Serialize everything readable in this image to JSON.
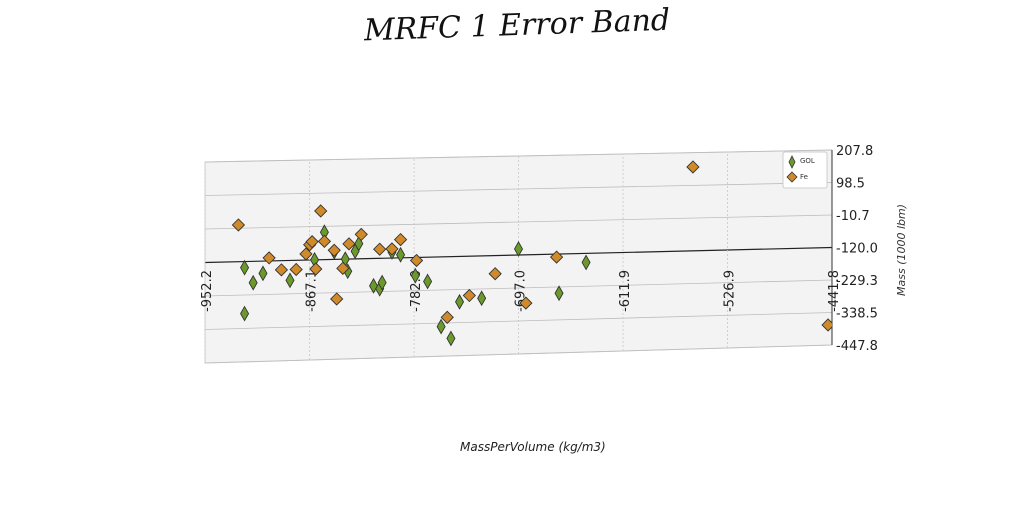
{
  "chart_data": {
    "type": "scatter",
    "title": "MRFC 1 Error Band",
    "xlabel": "MassPerVolume (kg/m3)",
    "ylabel": "Mass (1000 lbm)",
    "x_ticks": [
      "-952.2",
      "-867.1",
      "-782.0",
      "-697.0",
      "-611.9",
      "-526.9",
      "-441.8"
    ],
    "y_ticks": [
      "207.8",
      "98.5",
      "-10.7",
      "-120.0",
      "-229.3",
      "-338.5",
      "-447.8"
    ],
    "xlim": [
      -952.2,
      -441.8
    ],
    "ylim": [
      -447.8,
      207.8
    ],
    "grid": true,
    "legend_position": "top-right",
    "series": [
      {
        "name": "GOL",
        "color": "#6b9a2a",
        "marker": "thin-diamond",
        "points": [
          [
            -920,
            -140
          ],
          [
            -920,
            -290
          ],
          [
            -913,
            -190
          ],
          [
            -905,
            -160
          ],
          [
            -883,
            -185
          ],
          [
            -863,
            -120
          ],
          [
            -855,
            -30
          ],
          [
            -847,
            -95
          ],
          [
            -838,
            -120
          ],
          [
            -836,
            -160
          ],
          [
            -830,
            -95
          ],
          [
            -827,
            -70
          ],
          [
            -815,
            -210
          ],
          [
            -810,
            -220
          ],
          [
            -808,
            -200
          ],
          [
            -800,
            -100
          ],
          [
            -793,
            -110
          ],
          [
            -781,
            -180
          ],
          [
            -771,
            -200
          ],
          [
            -760,
            -350
          ],
          [
            -752,
            -390
          ],
          [
            -745,
            -270
          ],
          [
            -727,
            -260
          ],
          [
            -697,
            -100
          ],
          [
            -664,
            -250
          ],
          [
            -642,
            -150
          ]
        ]
      },
      {
        "name": "Fe",
        "color": "#d08a2a",
        "marker": "diamond",
        "points": [
          [
            -925,
            0
          ],
          [
            -900,
            -110
          ],
          [
            -890,
            -150
          ],
          [
            -878,
            -150
          ],
          [
            -870,
            -100
          ],
          [
            -867,
            -70
          ],
          [
            -865,
            -60
          ],
          [
            -862,
            -150
          ],
          [
            -858,
            40
          ],
          [
            -855,
            -60
          ],
          [
            -847,
            -90
          ],
          [
            -845,
            -250
          ],
          [
            -840,
            -150
          ],
          [
            -835,
            -70
          ],
          [
            -825,
            -40
          ],
          [
            -810,
            -90
          ],
          [
            -800,
            -90
          ],
          [
            -793,
            -60
          ],
          [
            -780,
            -130
          ],
          [
            -755,
            -320
          ],
          [
            -737,
            -250
          ],
          [
            -716,
            -180
          ],
          [
            -691,
            -280
          ],
          [
            -666,
            -130
          ],
          [
            -555,
            160
          ],
          [
            -445,
            -380
          ]
        ]
      }
    ]
  }
}
